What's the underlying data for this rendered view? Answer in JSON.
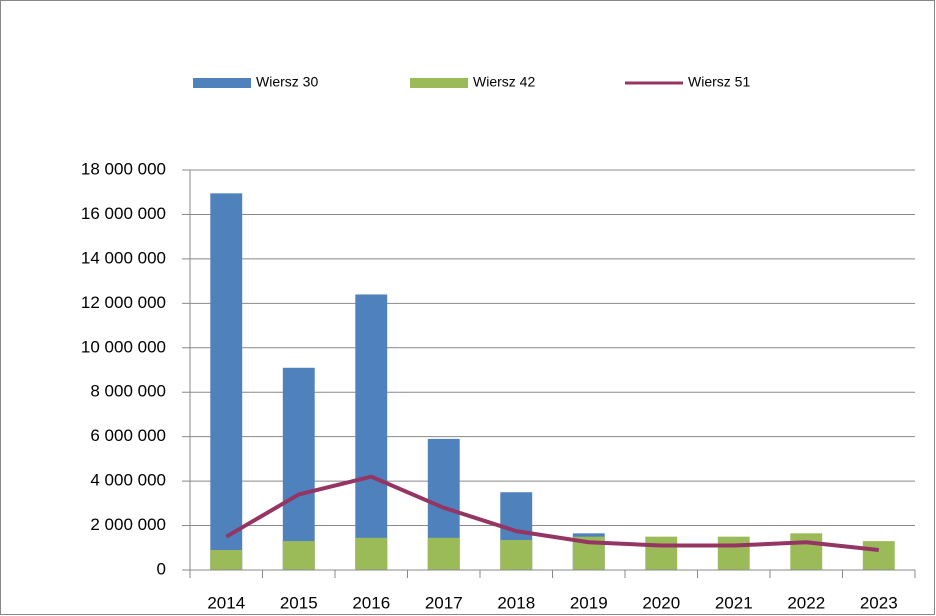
{
  "chart_data": {
    "type": "bar",
    "categories": [
      "2014",
      "2015",
      "2016",
      "2017",
      "2018",
      "2019",
      "2020",
      "2021",
      "2022",
      "2023"
    ],
    "series": [
      {
        "name": "Wiersz 30",
        "color": "#4f81bd",
        "type": "bar",
        "values": [
          16950000,
          9100000,
          12400000,
          5900000,
          3500000,
          1650000,
          null,
          null,
          null,
          null
        ]
      },
      {
        "name": "Wiersz 42",
        "color": "#9bbb59",
        "type": "bar",
        "values": [
          900000,
          1300000,
          1450000,
          1450000,
          1350000,
          1500000,
          1500000,
          1500000,
          1650000,
          1300000
        ]
      },
      {
        "name": "Wiersz 51",
        "color": "#953563",
        "type": "line",
        "values": [
          1500000,
          3400000,
          4200000,
          2800000,
          1750000,
          1250000,
          1100000,
          1100000,
          1250000,
          900000
        ]
      }
    ],
    "ylim": [
      0,
      18000000
    ],
    "yticks": [
      0,
      {
        "value": 2000000,
        "label": "2 000 000"
      },
      {
        "value": 4000000,
        "label": "4 000 000"
      },
      {
        "value": 6000000,
        "label": "6 000 000"
      },
      {
        "value": 8000000,
        "label": "8 000 000"
      },
      {
        "value": 10000000,
        "label": "10 000 000"
      },
      {
        "value": 12000000,
        "label": "12 000 000"
      },
      {
        "value": 14000000,
        "label": "14 000 000"
      },
      {
        "value": 16000000,
        "label": "16 000 000"
      },
      {
        "value": 18000000,
        "label": "18 000 000"
      }
    ],
    "grid": true,
    "legend": "top"
  }
}
